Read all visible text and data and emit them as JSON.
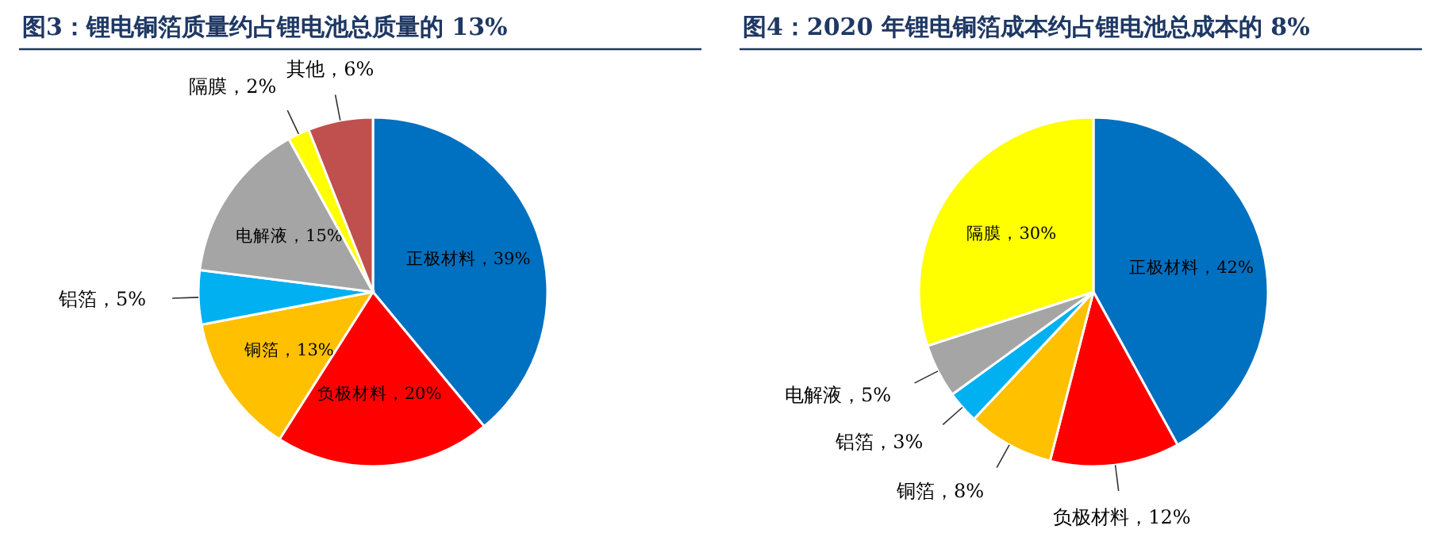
{
  "chart_data": [
    {
      "type": "pie",
      "title": "图3：锂电铜箔质量约占锂电池总质量的 13%",
      "categories": [
        "正极材料",
        "负极材料",
        "铜箔",
        "铝箔",
        "电解液",
        "隔膜",
        "其他"
      ],
      "values": [
        39,
        20,
        13,
        5,
        15,
        2,
        6
      ],
      "value_labels": [
        "39%",
        "20%",
        "13%",
        "5%",
        "15%",
        "2%",
        "6%"
      ],
      "colors": [
        "#0070c0",
        "#ff0000",
        "#ffc000",
        "#00b0f0",
        "#a5a5a5",
        "#ffff00",
        "#c0504d"
      ]
    },
    {
      "type": "pie",
      "title": "图4：2020 年锂电铜箔成本约占锂电池总成本的 8%",
      "categories": [
        "正极材料",
        "负极材料",
        "铜箔",
        "铝箔",
        "电解液",
        "隔膜"
      ],
      "values": [
        42,
        12,
        8,
        3,
        5,
        30
      ],
      "value_labels": [
        "42%",
        "12%",
        "8%",
        "3%",
        "5%",
        "30%"
      ],
      "colors": [
        "#0070c0",
        "#ff0000",
        "#ffc000",
        "#00b0f0",
        "#a5a5a5",
        "#ffff00"
      ]
    }
  ]
}
